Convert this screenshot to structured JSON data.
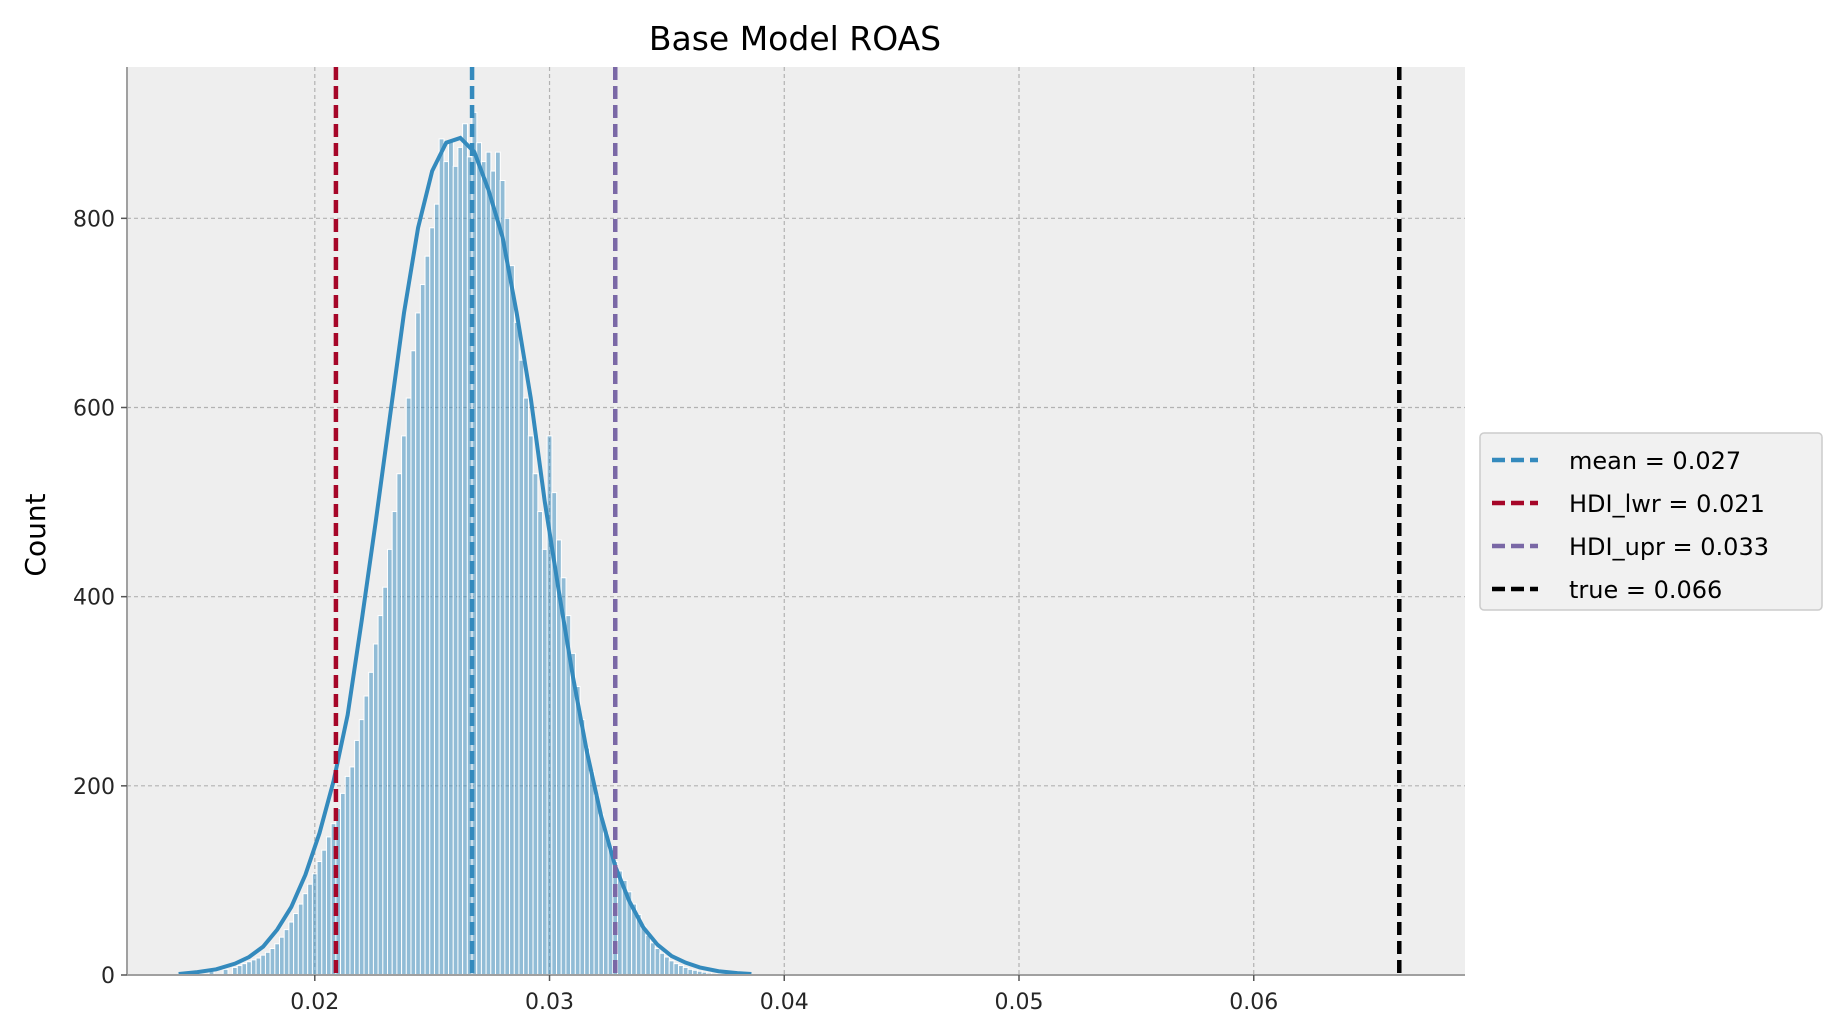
{
  "chart_data": {
    "type": "bar",
    "title": "Base Model ROAS",
    "xlabel": "",
    "ylabel": "Count",
    "xlim": [
      0.012,
      0.069
    ],
    "ylim": [
      0,
      960
    ],
    "xticks": [
      "0.02",
      "0.03",
      "0.04",
      "0.05",
      "0.06"
    ],
    "yticks": [
      "0",
      "200",
      "400",
      "600",
      "800"
    ],
    "xtick_values": [
      0.02,
      0.03,
      0.04,
      0.05,
      0.06
    ],
    "ytick_values": [
      0,
      200,
      400,
      600,
      800
    ],
    "grid": true,
    "legend_position": "center-right outside",
    "histogram": {
      "bin_width": 0.000206,
      "bins": [
        {
          "x": 0.0144,
          "count": 1
        },
        {
          "x": 0.015,
          "count": 2
        },
        {
          "x": 0.0156,
          "count": 4
        },
        {
          "x": 0.0162,
          "count": 6
        },
        {
          "x": 0.0166,
          "count": 8
        },
        {
          "x": 0.0168,
          "count": 10
        },
        {
          "x": 0.017,
          "count": 12
        },
        {
          "x": 0.0172,
          "count": 14
        },
        {
          "x": 0.0174,
          "count": 16
        },
        {
          "x": 0.0176,
          "count": 18
        },
        {
          "x": 0.0178,
          "count": 21
        },
        {
          "x": 0.018,
          "count": 24
        },
        {
          "x": 0.0182,
          "count": 28
        },
        {
          "x": 0.0184,
          "count": 33
        },
        {
          "x": 0.0186,
          "count": 40
        },
        {
          "x": 0.0188,
          "count": 48
        },
        {
          "x": 0.019,
          "count": 56
        },
        {
          "x": 0.0192,
          "count": 65
        },
        {
          "x": 0.0194,
          "count": 75
        },
        {
          "x": 0.0196,
          "count": 86
        },
        {
          "x": 0.0198,
          "count": 96
        },
        {
          "x": 0.02,
          "count": 107
        },
        {
          "x": 0.0202,
          "count": 120
        },
        {
          "x": 0.0204,
          "count": 132
        },
        {
          "x": 0.0206,
          "count": 146
        },
        {
          "x": 0.0208,
          "count": 160
        },
        {
          "x": 0.021,
          "count": 176
        },
        {
          "x": 0.0212,
          "count": 192
        },
        {
          "x": 0.0214,
          "count": 210
        },
        {
          "x": 0.0216,
          "count": 220
        },
        {
          "x": 0.0218,
          "count": 248
        },
        {
          "x": 0.022,
          "count": 270
        },
        {
          "x": 0.0222,
          "count": 295
        },
        {
          "x": 0.0224,
          "count": 320
        },
        {
          "x": 0.0226,
          "count": 350
        },
        {
          "x": 0.0228,
          "count": 380
        },
        {
          "x": 0.023,
          "count": 410
        },
        {
          "x": 0.0232,
          "count": 450
        },
        {
          "x": 0.0234,
          "count": 490
        },
        {
          "x": 0.0236,
          "count": 530
        },
        {
          "x": 0.0238,
          "count": 570
        },
        {
          "x": 0.024,
          "count": 610
        },
        {
          "x": 0.0242,
          "count": 660
        },
        {
          "x": 0.0244,
          "count": 700
        },
        {
          "x": 0.0246,
          "count": 730
        },
        {
          "x": 0.0248,
          "count": 760
        },
        {
          "x": 0.025,
          "count": 790
        },
        {
          "x": 0.0252,
          "count": 815
        },
        {
          "x": 0.0254,
          "count": 884
        },
        {
          "x": 0.0256,
          "count": 860
        },
        {
          "x": 0.0258,
          "count": 882
        },
        {
          "x": 0.026,
          "count": 855
        },
        {
          "x": 0.0262,
          "count": 875
        },
        {
          "x": 0.0264,
          "count": 900
        },
        {
          "x": 0.0266,
          "count": 865
        },
        {
          "x": 0.0268,
          "count": 912
        },
        {
          "x": 0.027,
          "count": 880
        },
        {
          "x": 0.0272,
          "count": 860
        },
        {
          "x": 0.0274,
          "count": 870
        },
        {
          "x": 0.0276,
          "count": 850
        },
        {
          "x": 0.0278,
          "count": 870
        },
        {
          "x": 0.028,
          "count": 840
        },
        {
          "x": 0.0282,
          "count": 800
        },
        {
          "x": 0.0284,
          "count": 750
        },
        {
          "x": 0.0286,
          "count": 690
        },
        {
          "x": 0.0288,
          "count": 650
        },
        {
          "x": 0.029,
          "count": 610
        },
        {
          "x": 0.0292,
          "count": 570
        },
        {
          "x": 0.0294,
          "count": 530
        },
        {
          "x": 0.0296,
          "count": 490
        },
        {
          "x": 0.0298,
          "count": 450
        },
        {
          "x": 0.03,
          "count": 570
        },
        {
          "x": 0.0302,
          "count": 510
        },
        {
          "x": 0.0304,
          "count": 460
        },
        {
          "x": 0.0306,
          "count": 420
        },
        {
          "x": 0.0308,
          "count": 380
        },
        {
          "x": 0.031,
          "count": 340
        },
        {
          "x": 0.0312,
          "count": 305
        },
        {
          "x": 0.0314,
          "count": 270
        },
        {
          "x": 0.0316,
          "count": 240
        },
        {
          "x": 0.0318,
          "count": 215
        },
        {
          "x": 0.032,
          "count": 190
        },
        {
          "x": 0.0322,
          "count": 170
        },
        {
          "x": 0.0324,
          "count": 150
        },
        {
          "x": 0.0326,
          "count": 135
        },
        {
          "x": 0.0328,
          "count": 120
        },
        {
          "x": 0.033,
          "count": 110
        },
        {
          "x": 0.0332,
          "count": 100
        },
        {
          "x": 0.0334,
          "count": 88
        },
        {
          "x": 0.0336,
          "count": 75
        },
        {
          "x": 0.0338,
          "count": 64
        },
        {
          "x": 0.034,
          "count": 52
        },
        {
          "x": 0.0342,
          "count": 42
        },
        {
          "x": 0.0344,
          "count": 34
        },
        {
          "x": 0.0346,
          "count": 28
        },
        {
          "x": 0.0348,
          "count": 23
        },
        {
          "x": 0.035,
          "count": 19
        },
        {
          "x": 0.0352,
          "count": 15
        },
        {
          "x": 0.0354,
          "count": 12
        },
        {
          "x": 0.0356,
          "count": 10
        },
        {
          "x": 0.0358,
          "count": 8
        },
        {
          "x": 0.036,
          "count": 6
        },
        {
          "x": 0.0362,
          "count": 5
        },
        {
          "x": 0.0364,
          "count": 4
        },
        {
          "x": 0.0366,
          "count": 3
        },
        {
          "x": 0.0368,
          "count": 2
        },
        {
          "x": 0.0372,
          "count": 1
        },
        {
          "x": 0.0378,
          "count": 1
        }
      ]
    },
    "kde": {
      "x": [
        0.0142,
        0.015,
        0.0158,
        0.0166,
        0.0172,
        0.0178,
        0.0184,
        0.019,
        0.0196,
        0.0202,
        0.0208,
        0.0214,
        0.022,
        0.0226,
        0.0232,
        0.0238,
        0.0244,
        0.025,
        0.0256,
        0.0262,
        0.0268,
        0.0274,
        0.028,
        0.0286,
        0.0292,
        0.0298,
        0.0304,
        0.031,
        0.0316,
        0.0322,
        0.0328,
        0.0334,
        0.034,
        0.0346,
        0.0352,
        0.0358,
        0.0364,
        0.0372,
        0.038,
        0.0386
      ],
      "y": [
        1,
        3,
        6,
        12,
        19,
        30,
        48,
        72,
        106,
        150,
        205,
        275,
        375,
        480,
        590,
        700,
        790,
        850,
        880,
        885,
        870,
        830,
        780,
        700,
        610,
        500,
        405,
        315,
        235,
        168,
        115,
        78,
        50,
        32,
        20,
        13,
        8,
        4,
        2,
        1
      ],
      "color": "#348abd"
    },
    "bar_color": "#348abd",
    "vlines": [
      {
        "label": "mean =  0.027",
        "x": 0.0267,
        "color": "#348abd"
      },
      {
        "label": "HDI_lwr =  0.021",
        "x": 0.0209,
        "color": "#a60628"
      },
      {
        "label": "HDI_upr =  0.033",
        "x": 0.0328,
        "color": "#7a68a6"
      },
      {
        "label": "true =  0.066",
        "x": 0.0662,
        "color": "#000000"
      }
    ]
  }
}
